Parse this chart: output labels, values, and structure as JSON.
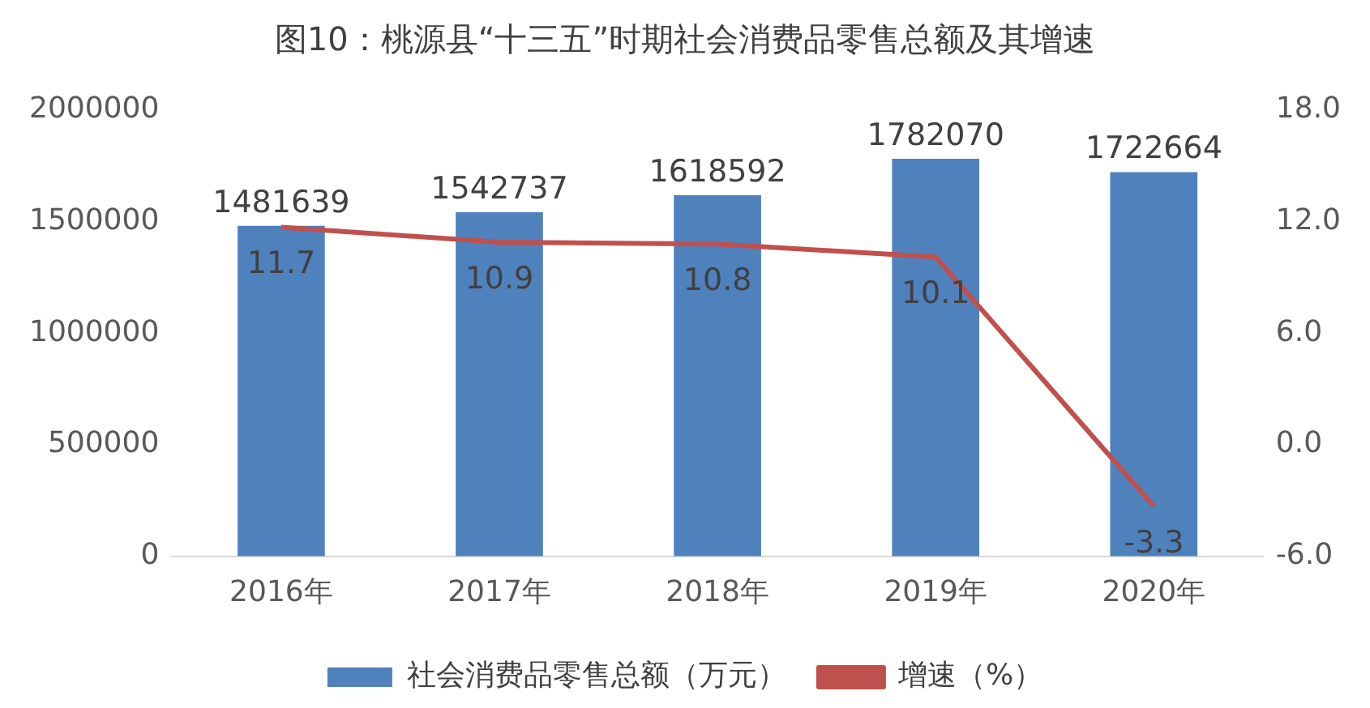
{
  "chart_data": {
    "type": "bar",
    "title": "图10：桃源县“十三五”时期社会消费品零售总额及其增速",
    "categories": [
      "2016年",
      "2017年",
      "2018年",
      "2019年",
      "2020年"
    ],
    "series": [
      {
        "name": "社会消费品零售总额（万元）",
        "color": "#4f81bd",
        "values": [
          1481639,
          1542737,
          1618592,
          1782070,
          1722664
        ]
      },
      {
        "type": "line",
        "name": "增速（%）",
        "color": "#c0504d",
        "axis": "y2",
        "values": [
          11.7,
          10.9,
          10.8,
          10.1,
          -3.3
        ]
      }
    ],
    "ylim": [
      0,
      2000000
    ],
    "yticks": [
      0,
      500000,
      1000000,
      1500000,
      2000000
    ],
    "y2lim": [
      -6,
      18
    ],
    "y2ticks": [
      {
        "value": -6,
        "label": "-6.0"
      },
      {
        "value": 0,
        "label": "0.0"
      },
      {
        "value": 6,
        "label": "6.0"
      },
      {
        "value": 12,
        "label": "12.0"
      },
      {
        "value": 18,
        "label": "18.0"
      }
    ],
    "grid": false,
    "legend": "bottom",
    "marker": "none",
    "line_style": "solid",
    "data_labels": true
  }
}
